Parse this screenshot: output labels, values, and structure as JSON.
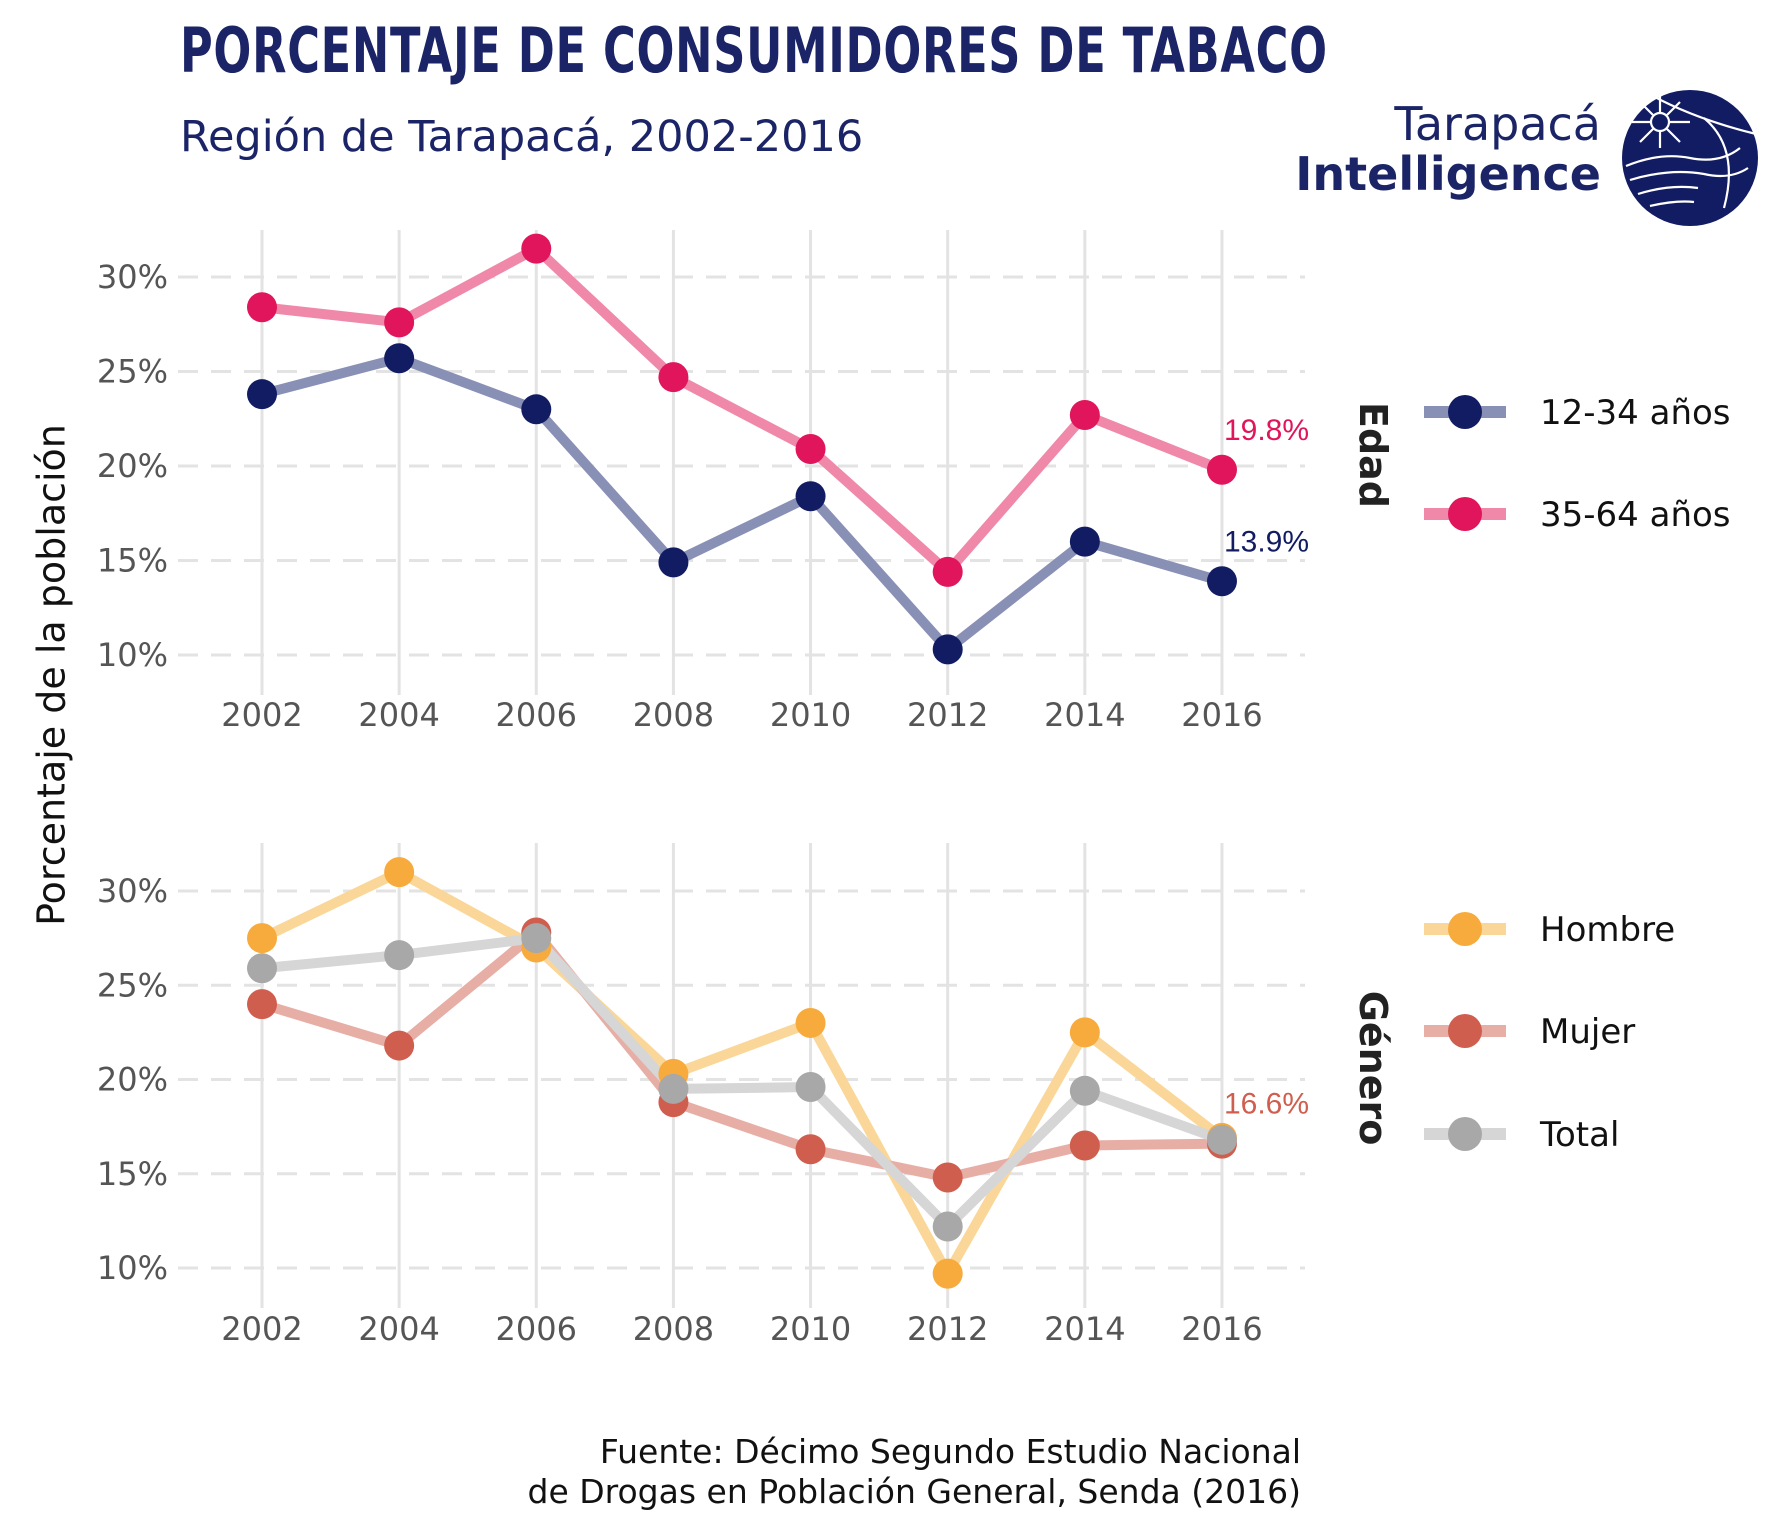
{
  "title": "PORCENTAJE DE CONSUMIDORES DE TABACO",
  "subtitle": "Región de Tarapacá, 2002-2016",
  "logo": {
    "line1": "Tarapacá",
    "line2": "Intelligence",
    "color": "#121c63"
  },
  "source": {
    "line1": "Fuente: Décimo Segundo Estudio Nacional",
    "line2": "de Drogas en Población General, Senda (2016)"
  },
  "chart_data": [
    {
      "type": "line",
      "facet": "Edad",
      "ylabel": "Porcentaje de la población",
      "x": [
        "2002",
        "2004",
        "2006",
        "2008",
        "2010",
        "2012",
        "2014",
        "2016"
      ],
      "yticks": [
        "10%",
        "15%",
        "20%",
        "25%",
        "30%"
      ],
      "ylim": [
        8.5,
        32.5
      ],
      "grid": true,
      "legend": "right",
      "series": [
        {
          "name": "12-34 años",
          "color": "#121c63",
          "line_color": "#8990b5",
          "values": [
            23.8,
            25.7,
            23.0,
            14.9,
            18.4,
            10.3,
            16.0,
            13.9
          ],
          "end_label": "13.9%"
        },
        {
          "name": "35-64 años",
          "color": "#e0155b",
          "line_color": "#ef88a9",
          "values": [
            28.4,
            27.6,
            31.5,
            24.7,
            20.9,
            14.4,
            22.7,
            19.8
          ],
          "end_label": "19.8%"
        }
      ]
    },
    {
      "type": "line",
      "facet": "Género",
      "ylabel": "Porcentaje de la población",
      "x": [
        "2002",
        "2004",
        "2006",
        "2008",
        "2010",
        "2012",
        "2014",
        "2016"
      ],
      "yticks": [
        "10%",
        "15%",
        "20%",
        "25%",
        "30%"
      ],
      "ylim": [
        8.5,
        32.5
      ],
      "grid": true,
      "legend": "right",
      "series": [
        {
          "name": "Hombre",
          "color": "#f7ab3c",
          "line_color": "#fad798",
          "values": [
            27.5,
            31.0,
            27.0,
            20.3,
            23.0,
            9.7,
            22.5,
            16.9
          ]
        },
        {
          "name": "Mujer",
          "color": "#cf5e4e",
          "line_color": "#e7aea6",
          "values": [
            24.0,
            21.8,
            27.8,
            18.8,
            16.3,
            14.8,
            16.5,
            16.6
          ],
          "end_label": "16.6%"
        },
        {
          "name": "Total",
          "color": "#a8a8a8",
          "line_color": "#d6d6d6",
          "values": [
            25.9,
            26.6,
            27.5,
            19.5,
            19.6,
            12.2,
            19.4,
            16.8
          ]
        }
      ]
    }
  ]
}
